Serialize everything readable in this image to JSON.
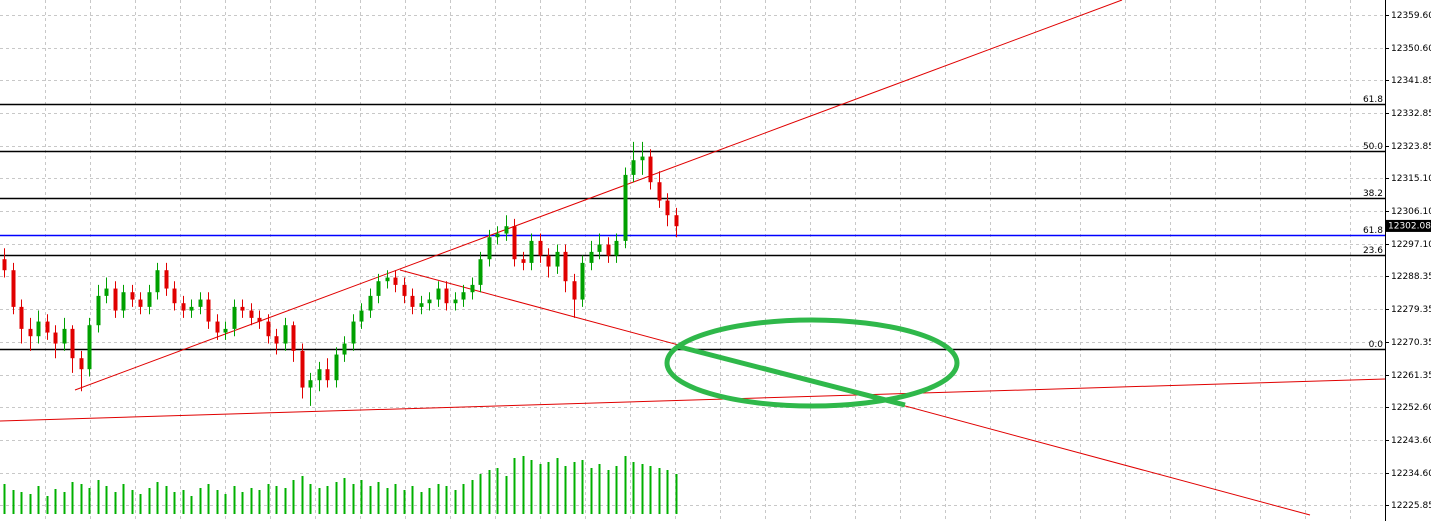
{
  "chart_data": {
    "type": "candlestick",
    "bull_color": "#00a000",
    "bear_color": "#e00000",
    "volume_color": "#00b000",
    "grid": true,
    "ylim": [
      12221.6,
      12363.7
    ],
    "yticks": [
      {
        "value": 12359.6,
        "label": "12359.60"
      },
      {
        "value": 12350.6,
        "label": "12350.60"
      },
      {
        "value": 12341.85,
        "label": "12341.85"
      },
      {
        "value": 12332.85,
        "label": "12332.85"
      },
      {
        "value": 12323.85,
        "label": "12323.85"
      },
      {
        "value": 12315.1,
        "label": "12315.10"
      },
      {
        "value": 12306.1,
        "label": "12306.10"
      },
      {
        "value": 12297.1,
        "label": "12297.10"
      },
      {
        "value": 12288.35,
        "label": "12288.35"
      },
      {
        "value": 12279.35,
        "label": "12279.35"
      },
      {
        "value": 12270.35,
        "label": "12270.35"
      },
      {
        "value": 12261.35,
        "label": "12261.35"
      },
      {
        "value": 12252.6,
        "label": "12252.60"
      },
      {
        "value": 12243.6,
        "label": "12243.60"
      },
      {
        "value": 12234.6,
        "label": "12234.60"
      },
      {
        "value": 12225.85,
        "label": "12225.85"
      }
    ],
    "current_price": 12302.08,
    "fib_levels": [
      {
        "label": "61.8",
        "price": 12335.3,
        "color": "#000000"
      },
      {
        "label": "50.0",
        "price": 12322.5,
        "color": "#000000"
      },
      {
        "label": "38.2",
        "price": 12309.7,
        "color": "#000000"
      },
      {
        "label": "61.8",
        "price": 12299.6,
        "color": "#0000ff"
      },
      {
        "label": "23.6",
        "price": 12294.2,
        "color": "#000000"
      },
      {
        "label": "0.0",
        "price": 12268.5,
        "color": "#000000"
      }
    ],
    "open": [
      12293,
      12290,
      12280,
      12274,
      12272,
      12276,
      12273,
      12270,
      12274,
      12266,
      12263,
      12275,
      12283,
      12285,
      12279,
      12284,
      12282,
      12280,
      12284,
      12290,
      12285,
      12281,
      12279,
      12280,
      12282,
      12276,
      12273,
      12274,
      12280,
      12279,
      12277,
      12276,
      12272,
      12270,
      12275,
      12268,
      12258,
      12260,
      12263,
      12260,
      12267,
      12270,
      12276,
      12279,
      12283,
      12287,
      12288,
      12286,
      12283,
      12280,
      12281,
      12282,
      12285,
      12281,
      12282,
      12284,
      12286,
      12293,
      12299,
      12300,
      12302,
      12293,
      12292,
      12298,
      12294,
      12291,
      12295,
      12287,
      12282,
      12292,
      12295,
      12297,
      12294,
      12298,
      12316,
      12320,
      12321,
      12314,
      12309,
      12305
    ],
    "high": [
      12296,
      12292,
      12282,
      12277,
      12279,
      12278,
      12275,
      12277,
      12275,
      12268,
      12277,
      12286,
      12288,
      12287,
      12286,
      12286,
      12284,
      12286,
      12292,
      12292,
      12287,
      12283,
      12282,
      12284,
      12284,
      12278,
      12276,
      12282,
      12282,
      12281,
      12279,
      12278,
      12274,
      12277,
      12276,
      12270,
      12262,
      12265,
      12266,
      12269,
      12272,
      12278,
      12281,
      12285,
      12289,
      12290,
      12290,
      12288,
      12285,
      12283,
      12284,
      12287,
      12287,
      12284,
      12286,
      12288,
      12295,
      12301,
      12302,
      12305,
      12304,
      12295,
      12300,
      12300,
      12296,
      12297,
      12297,
      12289,
      12294,
      12298,
      12300,
      12299,
      12300,
      12318,
      12325,
      12325,
      12323,
      12317,
      12311,
      12307
    ],
    "low": [
      12288,
      12278,
      12270,
      12268,
      12270,
      12271,
      12266,
      12268,
      12262,
      12257,
      12261,
      12273,
      12281,
      12277,
      12277,
      12280,
      12278,
      12278,
      12282,
      12283,
      12279,
      12277,
      12277,
      12278,
      12274,
      12271,
      12271,
      12272,
      12277,
      12275,
      12274,
      12270,
      12267,
      12268,
      12265,
      12255,
      12253,
      12257,
      12258,
      12258,
      12265,
      12268,
      12274,
      12277,
      12281,
      12285,
      12284,
      12281,
      12278,
      12278,
      12279,
      12280,
      12279,
      12279,
      12280,
      12282,
      12284,
      12291,
      12297,
      12298,
      12291,
      12290,
      12290,
      12292,
      12288,
      12289,
      12284,
      12277,
      12280,
      12290,
      12293,
      12292,
      12292,
      12296,
      12314,
      12316,
      12312,
      12307,
      12302,
      12299
    ],
    "close": [
      12290,
      12280,
      12274,
      12272,
      12276,
      12273,
      12270,
      12274,
      12266,
      12263,
      12275,
      12283,
      12285,
      12279,
      12284,
      12282,
      12280,
      12284,
      12290,
      12285,
      12281,
      12279,
      12280,
      12282,
      12276,
      12273,
      12274,
      12280,
      12279,
      12277,
      12276,
      12272,
      12270,
      12275,
      12268,
      12258,
      12260,
      12263,
      12260,
      12267,
      12270,
      12276,
      12279,
      12283,
      12287,
      12288,
      12286,
      12283,
      12280,
      12281,
      12282,
      12285,
      12281,
      12282,
      12284,
      12286,
      12293,
      12299,
      12300,
      12302,
      12293,
      12292,
      12298,
      12294,
      12291,
      12295,
      12287,
      12282,
      12292,
      12295,
      12297,
      12294,
      12298,
      12316,
      12320,
      12321,
      12314,
      12309,
      12305,
      12302
    ],
    "volume": [
      30,
      24,
      22,
      20,
      28,
      18,
      25,
      22,
      32,
      30,
      26,
      34,
      28,
      22,
      30,
      24,
      20,
      26,
      32,
      28,
      22,
      24,
      18,
      26,
      30,
      24,
      20,
      28,
      22,
      26,
      24,
      30,
      28,
      26,
      34,
      38,
      30,
      26,
      28,
      32,
      36,
      30,
      34,
      28,
      32,
      26,
      30,
      24,
      28,
      22,
      26,
      30,
      28,
      24,
      30,
      34,
      40,
      44,
      46,
      38,
      56,
      58,
      54,
      50,
      52,
      56,
      48,
      52,
      54,
      46,
      50,
      44,
      48,
      58,
      52,
      50,
      48,
      46,
      44,
      40
    ]
  }
}
